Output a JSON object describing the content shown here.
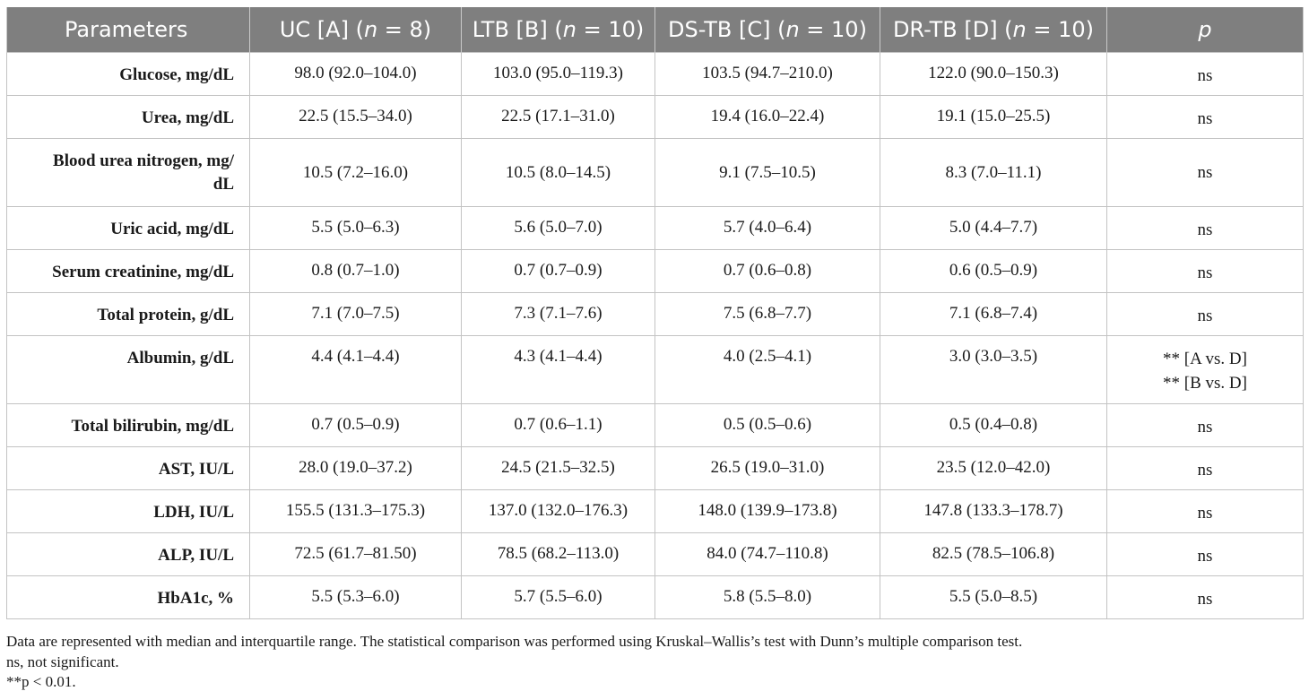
{
  "table": {
    "headers": [
      {
        "pre": "Parameters",
        "it": "",
        "post": ""
      },
      {
        "pre": "UC [A] (",
        "it": "n",
        "post": " = 8)"
      },
      {
        "pre": "LTB [B] (",
        "it": "n",
        "post": " = 10)"
      },
      {
        "pre": "DS-TB [C] (",
        "it": "n",
        "post": " = 10)"
      },
      {
        "pre": "DR-TB [D] (",
        "it": "n",
        "post": " = 10)"
      },
      {
        "pre": "",
        "it": "p",
        "post": ""
      }
    ],
    "rows": [
      {
        "param": "Glucose, mg/dL",
        "uc": "98.0 (92.0–104.0)",
        "ltb": "103.0 (95.0–119.3)",
        "dstb": "103.5 (94.7–210.0)",
        "drtb": "122.0 (90.0–150.3)",
        "p": [
          "ns"
        ]
      },
      {
        "param": "Urea, mg/dL",
        "uc": "22.5 (15.5–34.0)",
        "ltb": "22.5 (17.1–31.0)",
        "dstb": "19.4 (16.0–22.4)",
        "drtb": "19.1 (15.0–25.5)",
        "p": [
          "ns"
        ]
      },
      {
        "param": "Blood urea nitrogen, mg/\ndL",
        "uc": "10.5 (7.2–16.0)",
        "ltb": "10.5 (8.0–14.5)",
        "dstb": "9.1 (7.5–10.5)",
        "drtb": "8.3 (7.0–11.1)",
        "p": [
          "ns"
        ]
      },
      {
        "param": "Uric acid, mg/dL",
        "uc": "5.5 (5.0–6.3)",
        "ltb": "5.6 (5.0–7.0)",
        "dstb": "5.7 (4.0–6.4)",
        "drtb": "5.0 (4.4–7.7)",
        "p": [
          "ns"
        ]
      },
      {
        "param": "Serum creatinine, mg/dL",
        "uc": "0.8 (0.7–1.0)",
        "ltb": "0.7 (0.7–0.9)",
        "dstb": "0.7 (0.6–0.8)",
        "drtb": "0.6 (0.5–0.9)",
        "p": [
          "ns"
        ]
      },
      {
        "param": "Total protein, g/dL",
        "uc": "7.1 (7.0–7.5)",
        "ltb": "7.3 (7.1–7.6)",
        "dstb": "7.5 (6.8–7.7)",
        "drtb": "7.1 (6.8–7.4)",
        "p": [
          "ns"
        ]
      },
      {
        "param": "Albumin, g/dL",
        "uc": "4.4 (4.1–4.4)",
        "ltb": "4.3 (4.1–4.4)",
        "dstb": "4.0 (2.5–4.1)",
        "drtb": "3.0 (3.0–3.5)",
        "p": [
          "** [A vs. D]",
          "** [B vs. D]"
        ]
      },
      {
        "param": "Total bilirubin, mg/dL",
        "uc": "0.7 (0.5–0.9)",
        "ltb": "0.7 (0.6–1.1)",
        "dstb": "0.5 (0.5–0.6)",
        "drtb": "0.5 (0.4–0.8)",
        "p": [
          "ns"
        ]
      },
      {
        "param": "AST, IU/L",
        "uc": "28.0 (19.0–37.2)",
        "ltb": "24.5 (21.5–32.5)",
        "dstb": "26.5 (19.0–31.0)",
        "drtb": "23.5 (12.0–42.0)",
        "p": [
          "ns"
        ]
      },
      {
        "param": "LDH, IU/L",
        "uc": "155.5 (131.3–175.3)",
        "ltb": "137.0 (132.0–176.3)",
        "dstb": "148.0 (139.9–173.8)",
        "drtb": "147.8 (133.3–178.7)",
        "p": [
          "ns"
        ]
      },
      {
        "param": "ALP, IU/L",
        "uc": "72.5 (61.7–81.50)",
        "ltb": "78.5 (68.2–113.0)",
        "dstb": "84.0 (74.7–110.8)",
        "drtb": "82.5 (78.5–106.8)",
        "p": [
          "ns"
        ]
      },
      {
        "param": "HbA1c, %",
        "uc": "5.5 (5.3–6.0)",
        "ltb": "5.7 (5.5–6.0)",
        "dstb": "5.8 (5.5–8.0)",
        "drtb": "5.5 (5.0–8.5)",
        "p": [
          "ns"
        ]
      }
    ]
  },
  "footnotes": [
    "Data are represented with median and interquartile range. The statistical comparison was performed using Kruskal–Wallis’s test with Dunn’s multiple comparison test.",
    "ns, not significant.",
    "**p < 0.01."
  ]
}
